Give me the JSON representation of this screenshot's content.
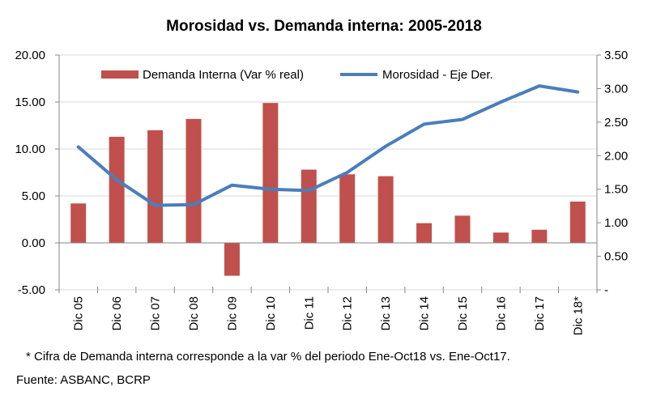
{
  "chart_data": {
    "type": "bar+line",
    "title": "Morosidad vs. Demanda interna: 2005-2018",
    "categories": [
      "Dic 05",
      "Dic 06",
      "Dic 07",
      "Dic 08",
      "Dic 09",
      "Dic 10",
      "Dic 11",
      "Dic 12",
      "Dic 13",
      "Dic 14",
      "Dic 15",
      "Dic 16",
      "Dic 17",
      "Dic 18*"
    ],
    "series": [
      {
        "name": "Demanda Interna (Var % real)",
        "type": "bar",
        "axis": "left",
        "color": "#c0504d",
        "values": [
          4.2,
          11.3,
          12.0,
          13.2,
          -3.5,
          14.9,
          7.8,
          7.3,
          7.1,
          2.1,
          2.9,
          1.1,
          1.4,
          4.4
        ]
      },
      {
        "name": "Morosidad - Eje Der.",
        "type": "line",
        "axis": "right",
        "color": "#4a7ebb",
        "values": [
          2.13,
          1.64,
          1.26,
          1.27,
          1.56,
          1.5,
          1.48,
          1.75,
          2.14,
          2.47,
          2.54,
          2.8,
          3.04,
          2.95
        ]
      }
    ],
    "y_left": {
      "ylim": [
        -5,
        20
      ],
      "ticks": [
        20,
        15,
        10,
        5,
        0,
        -5
      ],
      "tick_labels": [
        "20.00",
        "15.00",
        "10.00",
        "5.00",
        "0.00",
        "-5.00"
      ]
    },
    "y_right": {
      "ylim": [
        0,
        3.5
      ],
      "ticks": [
        3.5,
        3.0,
        2.5,
        2.0,
        1.5,
        1.0,
        0.5,
        0
      ],
      "tick_labels": [
        "3.50",
        "3.00",
        "2.50",
        "2.00",
        "1.50",
        "1.00",
        "0.50",
        "-"
      ]
    },
    "grid": true,
    "legend_placement": "top"
  },
  "footnote": "* Cifra de Demanda interna corresponde a la var % del periodo Ene-Oct18 vs. Ene-Oct17.",
  "source": "Fuente: ASBANC, BCRP"
}
